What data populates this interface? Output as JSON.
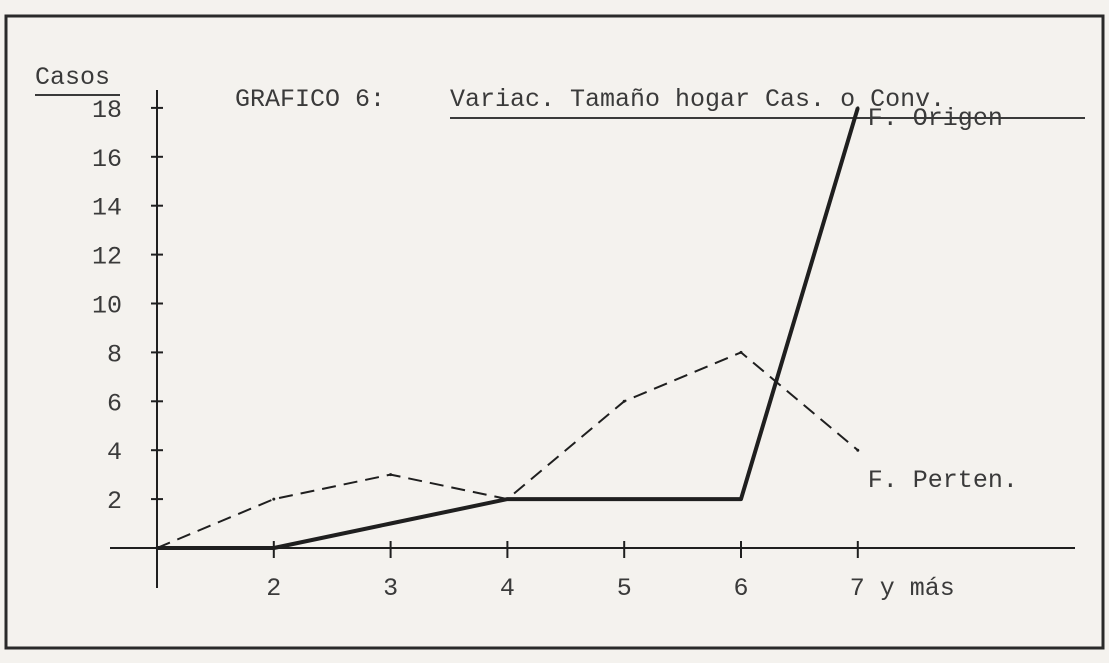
{
  "chart_data": {
    "type": "line",
    "title_prefix": "GRAFICO 6:",
    "title_main": "Variac. Tamaño hogar Cas. o Conv.",
    "ylabel": "Casos",
    "xlabel": "",
    "x": [
      1,
      2,
      3,
      4,
      5,
      6,
      7
    ],
    "x_tick_labels": [
      "2",
      "3",
      "4",
      "5",
      "6",
      "7 y más"
    ],
    "y_tick_labels": [
      "2",
      "4",
      "6",
      "8",
      "10",
      "12",
      "14",
      "16",
      "18"
    ],
    "ylim": [
      0,
      18
    ],
    "grid": false,
    "series": [
      {
        "name": "F. Origen",
        "style": "solid",
        "values": [
          0,
          0,
          1,
          2,
          2,
          2,
          18
        ]
      },
      {
        "name": "F. Perten.",
        "style": "dashed",
        "values": [
          0,
          2,
          3,
          2,
          6,
          8,
          4
        ]
      }
    ],
    "colors": {
      "background": "#f4f2ee",
      "ink": "#1f1f1f",
      "text": "#3a3a3a"
    }
  }
}
